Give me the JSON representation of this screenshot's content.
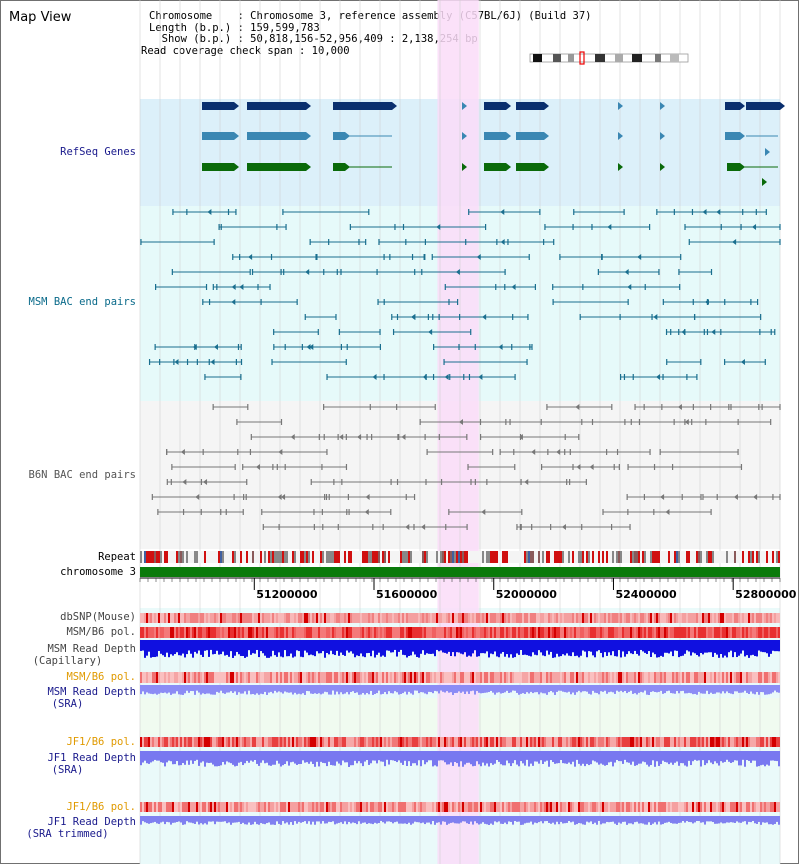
{
  "title": "Map View",
  "info": {
    "chromosome": "Chromosome    : Chromosome 3, reference assembly (C57BL/6J) (Build 37)",
    "length": "Length (b.p.) : 159,599,783",
    "show": "  Show (b.p.) : 50,818,156-52,956,409 : 2,138,254 bp",
    "coverage": "Read coverage check span : 10,000"
  },
  "labels": {
    "refseq": "RefSeq Genes",
    "msm_bac": "MSM BAC end pairs",
    "b6n_bac": "B6N BAC end pairs",
    "repeat": "Repeat",
    "chromosome": "chromosome 3",
    "dbsnp": "dbSNP(Mouse)",
    "msm_pol": "MSM/B6 pol.",
    "msm_depth_cap_1": "MSM Read Depth",
    "msm_depth_cap_2": "(Capillary)",
    "msm_pol2": "MSM/B6 pol.",
    "msm_depth_sra_1": "MSM Read Depth",
    "msm_depth_sra_2": "(SRA)",
    "jf1_pol": "JF1/B6 pol.",
    "jf1_depth_sra_1": "JF1 Read Depth",
    "jf1_depth_sra_2": "(SRA)",
    "jf1_pol2": "JF1/B6 pol.",
    "jf1_depth_trim_1": "JF1 Read Depth",
    "jf1_depth_trim_2": "(SRA trimmed)"
  },
  "axis": {
    "ticks": [
      {
        "label": "51200000",
        "bp": 51200000
      },
      {
        "label": "51600000",
        "bp": 51600000
      },
      {
        "label": "52000000",
        "bp": 52000000
      },
      {
        "label": "52400000",
        "bp": 52400000
      },
      {
        "label": "52800000",
        "bp": 52800000
      }
    ],
    "start_bp": 50818156,
    "end_bp": 52956409
  },
  "highlight": {
    "start_bp": 51812000,
    "end_bp": 51950000
  },
  "colors": {
    "refseq_bg": "#dcf0fa",
    "msm_bg": "#e6fafa",
    "b6n_bg": "#f5f5f5",
    "highlight": "#fadcf8",
    "refseq_dark": "#0a2f6e",
    "refseq_mid": "#3a87b3",
    "refseq_green": "#0a6a0a",
    "msm_line": "#1a6f8f",
    "b6n_line": "#777777",
    "chrom_green": "#0a7a0a",
    "label_navy": "#1a1a8c",
    "label_teal": "#0a6a8a",
    "label_orange": "#e09a00",
    "label_gray": "#444444"
  }
}
